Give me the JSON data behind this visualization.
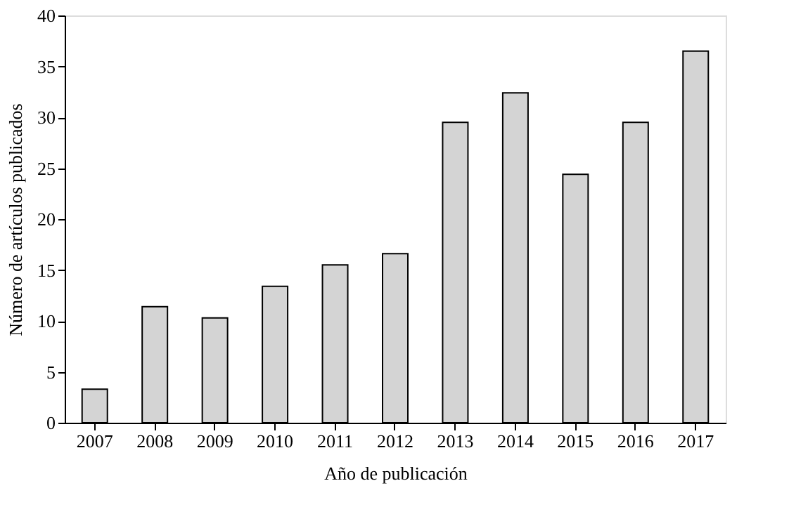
{
  "chart_data": {
    "type": "bar",
    "xlabel": "Año de publicación",
    "ylabel": "Número de artículos publicados",
    "categories": [
      "2007",
      "2008",
      "2009",
      "2010",
      "2011",
      "2012",
      "2013",
      "2014",
      "2015",
      "2016",
      "2017"
    ],
    "values": [
      3.3,
      11.4,
      10.3,
      13.4,
      15.5,
      16.6,
      29.5,
      32.4,
      24.4,
      29.5,
      36.5
    ],
    "color": "#d4d4d4",
    "ylim": [
      0,
      40
    ],
    "yticks": [
      0,
      5,
      10,
      15,
      20,
      25,
      30,
      35,
      40
    ],
    "grid": false
  }
}
